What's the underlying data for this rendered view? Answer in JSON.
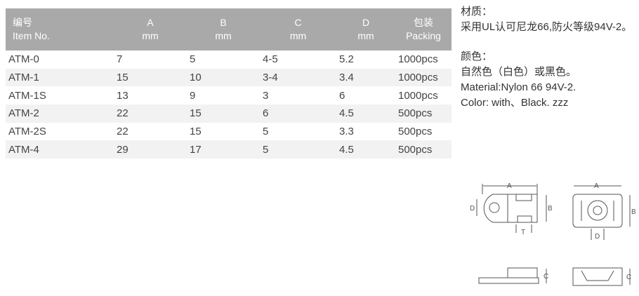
{
  "table": {
    "headers": [
      [
        "编号",
        "Item No."
      ],
      [
        "A",
        "mm"
      ],
      [
        "B",
        "mm"
      ],
      [
        "C",
        "mm"
      ],
      [
        "D",
        "mm"
      ],
      [
        "包装",
        "Packing"
      ]
    ],
    "rows": [
      [
        "ATM-0",
        "7",
        "5",
        "4-5",
        "5.2",
        "1000pcs"
      ],
      [
        "ATM-1",
        "15",
        "10",
        "3-4",
        "3.4",
        "1000pcs"
      ],
      [
        "ATM-1S",
        "13",
        "9",
        "3",
        "6",
        "1000pcs"
      ],
      [
        "ATM-2",
        "22",
        "15",
        "6",
        "4.5",
        "500pcs"
      ],
      [
        "ATM-2S",
        "22",
        "15",
        "5",
        "3.3",
        "500pcs"
      ],
      [
        "ATM-4",
        "29",
        "17",
        "5",
        "4.5",
        "500pcs"
      ]
    ]
  },
  "info": {
    "material_label": "材质：",
    "material_cn": "采用UL认可尼龙66,防火等级94V-2。",
    "color_label": "颜色：",
    "color_cn": "自然色（白色）或黑色。",
    "material_en": "Material:Nylon 66 94V-2.",
    "color_en": "Color: with、Black. zzz"
  },
  "drawing": {
    "labels": {
      "a": "A",
      "b": "B",
      "c": "C",
      "d": "D",
      "t": "T"
    }
  },
  "colors": {
    "header_bg": "#a9a9a9",
    "stripe": "#f2f2f2"
  }
}
